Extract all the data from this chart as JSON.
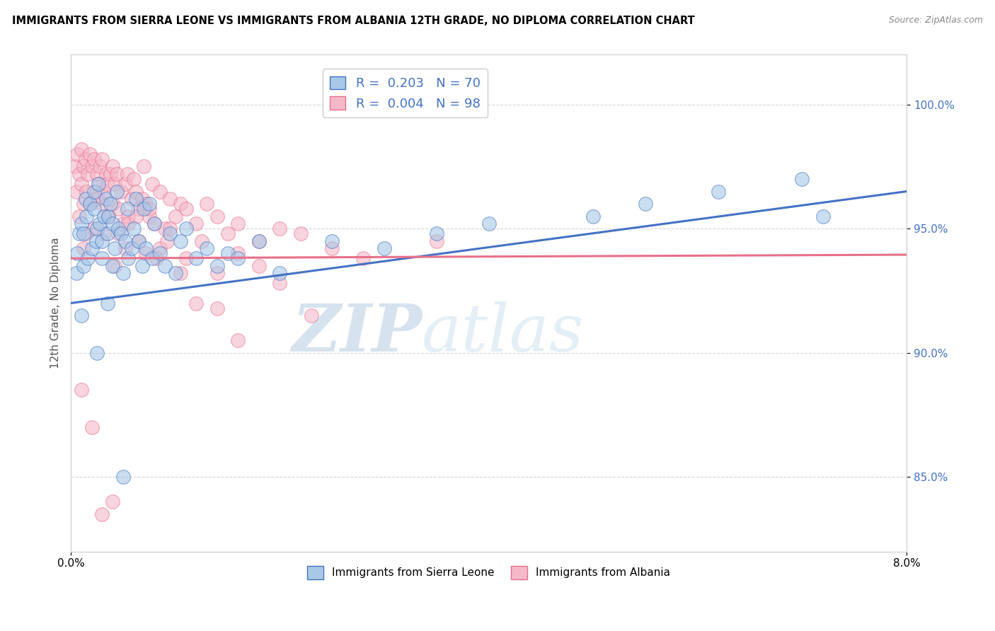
{
  "title": "IMMIGRANTS FROM SIERRA LEONE VS IMMIGRANTS FROM ALBANIA 12TH GRADE, NO DIPLOMA CORRELATION CHART",
  "source": "Source: ZipAtlas.com",
  "ylabel": "12th Grade, No Diploma",
  "xlim": [
    0.0,
    8.0
  ],
  "ylim": [
    82.0,
    102.0
  ],
  "x_ticks": [
    0.0,
    8.0
  ],
  "x_tick_labels": [
    "0.0%",
    "8.0%"
  ],
  "y_ticks": [
    85.0,
    90.0,
    95.0,
    100.0
  ],
  "y_tick_labels": [
    "85.0%",
    "90.0%",
    "95.0%",
    "100.0%"
  ],
  "color_blue": "#a8c8e8",
  "color_pink": "#f4b8c8",
  "line_blue": "#4472C4",
  "line_pink": "#e8708a",
  "watermark_zip": "ZIP",
  "watermark_atlas": "atlas",
  "legend_xlabel1": "Immigrants from Sierra Leone",
  "legend_xlabel2": "Immigrants from Albania",
  "blue_R": 0.203,
  "blue_N": 70,
  "pink_R": 0.004,
  "pink_N": 98,
  "blue_x": [
    0.05,
    0.06,
    0.08,
    0.1,
    0.12,
    0.12,
    0.14,
    0.15,
    0.16,
    0.18,
    0.2,
    0.22,
    0.22,
    0.24,
    0.25,
    0.26,
    0.28,
    0.3,
    0.3,
    0.32,
    0.34,
    0.35,
    0.36,
    0.38,
    0.4,
    0.4,
    0.42,
    0.44,
    0.45,
    0.48,
    0.5,
    0.52,
    0.54,
    0.55,
    0.58,
    0.6,
    0.62,
    0.65,
    0.68,
    0.7,
    0.72,
    0.75,
    0.78,
    0.8,
    0.85,
    0.9,
    0.95,
    1.0,
    1.05,
    1.1,
    1.2,
    1.3,
    1.4,
    1.5,
    1.6,
    1.8,
    2.0,
    2.5,
    3.0,
    3.5,
    4.0,
    5.0,
    5.5,
    6.2,
    7.0,
    7.2,
    0.1,
    0.25,
    0.35,
    0.5
  ],
  "blue_y": [
    93.2,
    94.0,
    94.8,
    95.2,
    93.5,
    94.8,
    96.2,
    95.5,
    93.8,
    96.0,
    94.2,
    95.8,
    96.5,
    94.5,
    95.0,
    96.8,
    95.2,
    93.8,
    94.5,
    95.5,
    96.2,
    94.8,
    95.5,
    96.0,
    93.5,
    95.2,
    94.2,
    96.5,
    95.0,
    94.8,
    93.2,
    94.5,
    95.8,
    93.8,
    94.2,
    95.0,
    96.2,
    94.5,
    93.5,
    95.8,
    94.2,
    96.0,
    93.8,
    95.2,
    94.0,
    93.5,
    94.8,
    93.2,
    94.5,
    95.0,
    93.8,
    94.2,
    93.5,
    94.0,
    93.8,
    94.5,
    93.2,
    94.5,
    94.2,
    94.8,
    95.2,
    95.5,
    96.0,
    96.5,
    97.0,
    95.5,
    91.5,
    90.0,
    92.0,
    85.0
  ],
  "pink_x": [
    0.04,
    0.05,
    0.06,
    0.08,
    0.1,
    0.1,
    0.12,
    0.12,
    0.14,
    0.15,
    0.16,
    0.18,
    0.18,
    0.2,
    0.22,
    0.22,
    0.24,
    0.25,
    0.26,
    0.28,
    0.3,
    0.3,
    0.32,
    0.34,
    0.35,
    0.36,
    0.38,
    0.4,
    0.4,
    0.42,
    0.44,
    0.45,
    0.48,
    0.5,
    0.52,
    0.54,
    0.55,
    0.58,
    0.6,
    0.62,
    0.65,
    0.68,
    0.7,
    0.72,
    0.75,
    0.78,
    0.8,
    0.85,
    0.9,
    0.95,
    1.0,
    1.05,
    1.1,
    1.2,
    1.3,
    1.4,
    1.5,
    1.6,
    1.8,
    2.0,
    2.2,
    2.5,
    2.8,
    3.5,
    0.08,
    0.15,
    0.25,
    0.35,
    0.45,
    0.55,
    0.65,
    0.75,
    0.85,
    0.95,
    1.1,
    1.25,
    1.4,
    1.6,
    1.8,
    2.0,
    2.3,
    0.12,
    0.22,
    0.32,
    0.42,
    0.52,
    0.62,
    0.72,
    0.82,
    0.92,
    1.05,
    1.2,
    1.4,
    1.6,
    0.1,
    0.2,
    0.3,
    0.4
  ],
  "pink_y": [
    97.5,
    96.5,
    98.0,
    97.2,
    96.8,
    98.2,
    97.5,
    96.0,
    97.8,
    96.5,
    97.2,
    96.0,
    98.0,
    97.5,
    96.2,
    97.8,
    96.5,
    97.2,
    96.8,
    97.5,
    96.0,
    97.8,
    96.5,
    97.2,
    96.8,
    95.5,
    97.2,
    96.0,
    97.5,
    96.8,
    97.2,
    95.8,
    96.5,
    95.2,
    96.8,
    97.2,
    95.5,
    96.2,
    97.0,
    96.5,
    95.8,
    96.2,
    97.5,
    96.0,
    95.5,
    96.8,
    95.2,
    96.5,
    95.0,
    96.2,
    95.5,
    96.0,
    95.8,
    95.2,
    96.0,
    95.5,
    94.8,
    95.2,
    94.5,
    95.0,
    94.8,
    94.2,
    93.8,
    94.5,
    95.5,
    94.8,
    96.2,
    95.5,
    94.8,
    95.2,
    94.5,
    95.8,
    94.2,
    95.0,
    93.8,
    94.5,
    93.2,
    94.0,
    93.5,
    92.8,
    91.5,
    94.2,
    95.0,
    94.8,
    93.5,
    94.2,
    95.5,
    94.0,
    93.8,
    94.5,
    93.2,
    92.0,
    91.8,
    90.5,
    88.5,
    87.0,
    83.5,
    84.0
  ]
}
